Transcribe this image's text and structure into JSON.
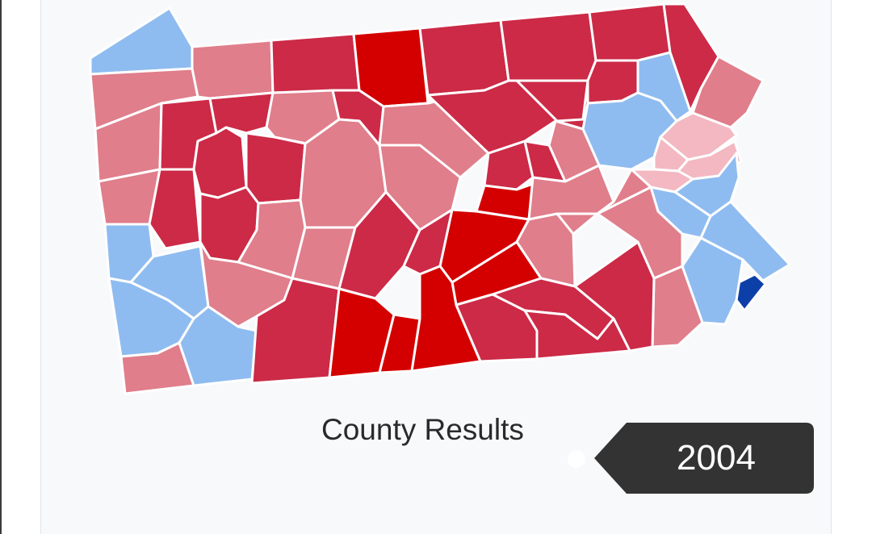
{
  "map": {
    "title": "County Results",
    "legend_colors": {
      "dem_strong": "#0d3fa8",
      "dem_lean": "#8fbcf0",
      "rep_light": "#f3b8c1",
      "rep_lean": "#e07e8b",
      "rep_strong": "#cc2a47",
      "rep_very_strong": "#d40000"
    }
  },
  "timeline": {
    "selected_year": "2004"
  }
}
